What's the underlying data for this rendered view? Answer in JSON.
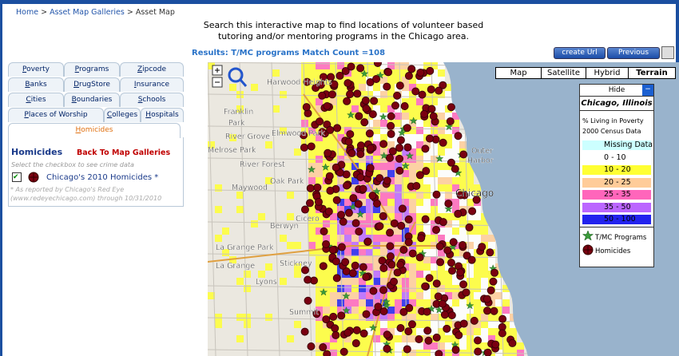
{
  "breadcrumb": {
    "items": [
      "Home",
      "Asset Map Galleries",
      "Asset Map"
    ],
    "separator": ">"
  },
  "intro": [
    "Search this interactive map to find locations of volunteer based",
    "tutoring and/or mentoring programs in the Chicago area."
  ],
  "results": "Results: T/MC programs Match Count =108",
  "buttons": [
    "create Url",
    "Previous Zoom"
  ],
  "tabs": [
    [
      "Poverty",
      "Programs",
      "Zipcode"
    ],
    [
      "Banks",
      "DrugStore",
      "Insurance"
    ],
    [
      "Cities",
      "Boundaries",
      "Schools"
    ],
    [
      "Places of Worship",
      "Colleges",
      "Hospitals"
    ],
    [
      "Homicides"
    ]
  ],
  "panel": {
    "title": "Homicides",
    "back": "Back To Map Galleries",
    "hint": "Select the checkbox to see crime data",
    "layer": "Chicago's 2010 Homicides *",
    "note": [
      "* As reported by Chicago's Red Eye",
      "(www.redeyechicago.com) through 10/31/2010"
    ]
  },
  "map": {
    "type_buttons": [
      "Map",
      "Satellite",
      "Hybrid",
      "Terrain"
    ],
    "places": [
      "Harwood Heights",
      "Franklin",
      "Park",
      "River Grove",
      "Elmwood Park",
      "Melrose Park",
      "River Forest",
      "Oak Park",
      "Maywood",
      "Chicago",
      "Outer",
      "Harbor",
      "Berwyn",
      "Cicero",
      "La Grange Park",
      "La Grange",
      "Stickney",
      "Lyons",
      "Summit"
    ],
    "legend": {
      "hide": "Hide",
      "title": "Chicago, Illinois",
      "subtitle": [
        "% Living in Poverty",
        "2000 Census Data"
      ],
      "bins": [
        {
          "label": "Missing Data",
          "color": "#ccffff"
        },
        {
          "label": "0 - 10",
          "color": "#ffffff"
        },
        {
          "label": "10 - 20",
          "color": "#ffff33"
        },
        {
          "label": "20 - 25",
          "color": "#ffcc99"
        },
        {
          "label": "25 - 35",
          "color": "#ff66bb"
        },
        {
          "label": "35 - 50",
          "color": "#bb66ff"
        },
        {
          "label": "50 - 100",
          "color": "#2222ee"
        }
      ],
      "markers": [
        "T/MC Programs",
        "Homicides"
      ]
    }
  }
}
